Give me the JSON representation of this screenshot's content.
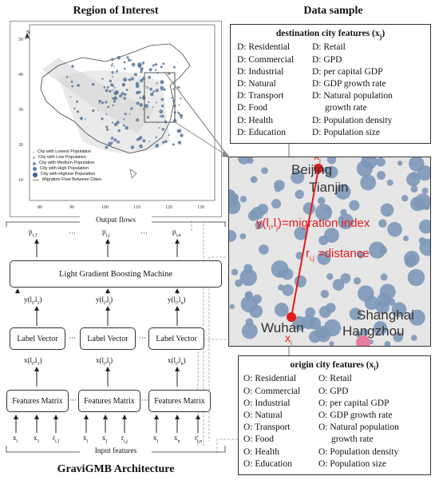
{
  "left_header": "Region of Interest",
  "right_header": "Data sample",
  "map": {
    "north_label": "N",
    "y_ticks": [
      "50",
      "40",
      "30",
      "20",
      "10"
    ],
    "x_ticks": [
      "80",
      "90",
      "100",
      "110",
      "120",
      "130"
    ],
    "legend": [
      {
        "label": "City with Lowest Population",
        "color": "#b9c7d6"
      },
      {
        "label": "City with Low Population",
        "color": "#9fb2c8"
      },
      {
        "label": "City with Medium Population",
        "color": "#7f98b5"
      },
      {
        "label": "City with High Population",
        "color": "#5e7ea3"
      },
      {
        "label": "City with Highest Population",
        "color": "#3f6390"
      },
      {
        "label": "Migration Flow Between Cities",
        "color": "#888888"
      }
    ]
  },
  "destination": {
    "title_main": "destination city features (x",
    "title_sub": "j",
    "title_end": ")",
    "left": [
      "D: Residential",
      "D: Commercial",
      "D: Industrial",
      "D: Natural",
      "D: Transport",
      "D: Food",
      "D: Health",
      "D: Education"
    ],
    "right": [
      "D: Retail",
      "D: GPD",
      "D: per capital GDP",
      "D: GDP growth rate",
      "D: Natural population",
      "growth rate",
      "D: Population density",
      "D: Population size"
    ]
  },
  "origin": {
    "title_main": "origin city features (x",
    "title_sub": "i",
    "title_end": ")",
    "left": [
      "O: Residential",
      "O: Commercial",
      "O: Industrial",
      "O: Natural",
      "O: Transport",
      "O: Food",
      "O: Health",
      "O: Education"
    ],
    "right": [
      "O: Retail",
      "O: GPD",
      "O: per capital GDP",
      "O: GDP growth rate",
      "O: Natural population",
      "growth rate",
      "O: Population density",
      "O: Population size"
    ]
  },
  "zoom": {
    "beijing": "Beijing",
    "tianjin": "Tianjin",
    "shanghai": "Shanghai",
    "hangzhou": "Hangzhou",
    "wuhan": "Wuhan",
    "xj": "x",
    "xj_sub": "j",
    "xi": "x",
    "xi_sub": "i",
    "migration_label": "y(l",
    "migration_i": "i",
    "migration_mid": ",l",
    "migration_j": "j",
    "migration_end": ")=migration index",
    "distance_label": "r",
    "distance_sub": "i,j",
    "distance_end": " =distance"
  },
  "arch": {
    "output_flows": "Output flows",
    "outputs": [
      {
        "main": "p",
        "sub": "i,1"
      },
      {
        "main": "p",
        "sub": "i,j"
      },
      {
        "main": "p",
        "sub": "i,n"
      }
    ],
    "dots": "···",
    "lgbm": "Light Gradient Boosting Machine",
    "y_labels": [
      {
        "main": "y(l",
        "a": "i",
        "mid": ",l",
        "b": "1",
        "end": ")"
      },
      {
        "main": "y(l",
        "a": "i",
        "mid": ",l",
        "b": "j",
        "end": ")"
      },
      {
        "main": "y(l",
        "a": "i",
        "mid": ",l",
        "b": "n",
        "end": ")"
      }
    ],
    "label_vector": "Label Vector",
    "x_labels": [
      {
        "main": "x(l",
        "a": "i",
        "mid": ",l",
        "b": "1",
        "end": ")"
      },
      {
        "main": "x(l",
        "a": "i",
        "mid": ",l",
        "b": "j",
        "end": ")"
      },
      {
        "main": "x(l",
        "a": "i",
        "mid": ",l",
        "b": "n",
        "end": ")"
      }
    ],
    "features_matrix": "Features Matrix",
    "inputs": [
      {
        "main": "x",
        "sub": "i"
      },
      {
        "main": "x",
        "sub": "1"
      },
      {
        "main": "r",
        "sub": "i,1"
      },
      {
        "main": "x",
        "sub": "i"
      },
      {
        "main": "x",
        "sub": "j"
      },
      {
        "main": "r",
        "sub": "i,j"
      },
      {
        "main": "x",
        "sub": "i"
      },
      {
        "main": "x",
        "sub": "n"
      },
      {
        "main": "r",
        "sub": "i,n"
      }
    ],
    "input_features": "Input features",
    "caption": "GraviGMB Architecture"
  }
}
